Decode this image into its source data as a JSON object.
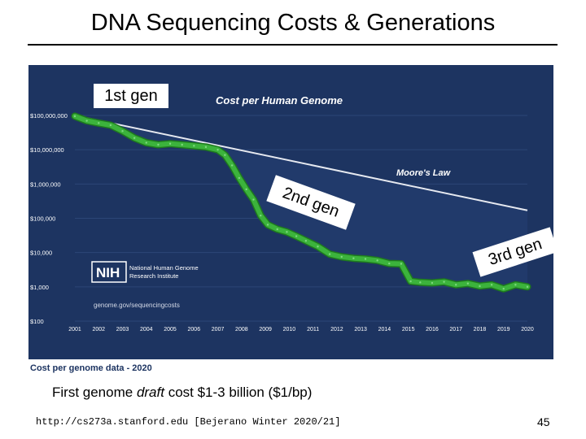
{
  "slide": {
    "title": "DNA Sequencing Costs & Generations",
    "note_prefix": "First genome ",
    "note_italic": "draft",
    "note_suffix": " cost $1-3 billion ($1/bp)",
    "footer_url": "http://cs273a.stanford.edu [Bejerano Winter 2020/21]",
    "page_number": "45"
  },
  "annotations": {
    "gen1": "1st gen",
    "gen2": "2nd gen",
    "gen3": "3rd gen"
  },
  "nih": {
    "logo": "NIH",
    "org_line1": "National Human Genome",
    "org_line2": "Research Institute",
    "url": "genome.gov/sequencingcosts"
  },
  "colors": {
    "background": "#1d3461",
    "series": "#3cb33c",
    "series_dark": "#1e7a1e",
    "moore": "#e6e9f0",
    "area": "#213a6b",
    "text": "#ffffff"
  },
  "chart_data": {
    "type": "line",
    "title": "Cost per Human Genome",
    "caption": "Cost per genome data - 2020",
    "yscale": "log",
    "ylim": [
      100,
      100000000
    ],
    "yticks": [
      100,
      1000,
      10000,
      100000,
      1000000,
      10000000,
      100000000
    ],
    "ytick_labels": [
      "$100",
      "$1,000",
      "$10,000",
      "$100,000",
      "$1,000,000",
      "$10,000,000",
      "$100,000,000"
    ],
    "xlim": [
      2001,
      2020
    ],
    "xticks": [
      2001,
      2002,
      2003,
      2004,
      2005,
      2006,
      2007,
      2008,
      2009,
      2010,
      2011,
      2012,
      2013,
      2014,
      2015,
      2016,
      2017,
      2018,
      2019,
      2020
    ],
    "xtick_labels": [
      "2001",
      "2002",
      "2003",
      "2004",
      "2005",
      "2006",
      "2007",
      "2008",
      "2009",
      "2010",
      "2011",
      "2012",
      "2013",
      "2014",
      "2015",
      "2016",
      "2017",
      "2018",
      "2019",
      "2020"
    ],
    "series": [
      {
        "name": "Cost per Genome",
        "x": [
          2001.0,
          2001.5,
          2002.0,
          2002.5,
          2003.0,
          2003.5,
          2004.0,
          2004.5,
          2005.0,
          2005.5,
          2006.0,
          2006.5,
          2007.0,
          2007.3,
          2007.6,
          2007.9,
          2008.2,
          2008.5,
          2008.8,
          2009.1,
          2009.5,
          2009.9,
          2010.3,
          2010.7,
          2011.2,
          2011.7,
          2012.2,
          2012.7,
          2013.2,
          2013.7,
          2014.2,
          2014.7,
          2015.1,
          2015.5,
          2016.0,
          2016.5,
          2017.0,
          2017.5,
          2018.0,
          2018.5,
          2019.0,
          2019.5,
          2020.0
        ],
        "y": [
          95000000,
          70000000,
          60000000,
          52000000,
          35000000,
          22000000,
          16000000,
          14000000,
          15000000,
          14000000,
          13000000,
          12000000,
          10000000,
          7000000,
          3500000,
          1500000,
          700000,
          350000,
          120000,
          65000,
          48000,
          40000,
          30000,
          22000,
          15000,
          9000,
          7500,
          6800,
          6500,
          5900,
          4800,
          4700,
          1450,
          1350,
          1300,
          1400,
          1150,
          1250,
          1050,
          1150,
          880,
          1150,
          1000
        ]
      },
      {
        "name": "Moore's Law",
        "x": [
          2001,
          2020
        ],
        "y": [
          100000000,
          170000
        ]
      }
    ]
  }
}
